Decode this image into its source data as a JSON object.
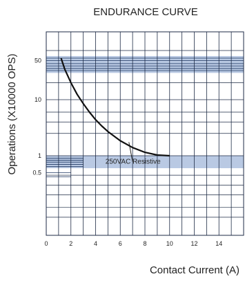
{
  "chart_data": {
    "type": "line",
    "title": "ENDURANCE CURVE",
    "xlabel": "Contact Current (A)",
    "ylabel": "Operations (X10000 OPS)",
    "xlim": [
      0,
      16
    ],
    "x_ticks": [
      0,
      2,
      4,
      6,
      8,
      10,
      12,
      14
    ],
    "y_scale": "log",
    "y_ticks": [
      {
        "value": 0.5,
        "label": "0.5"
      },
      {
        "value": 1,
        "label": "1"
      },
      {
        "value": 10,
        "label": "10"
      },
      {
        "value": 50,
        "label": "50"
      }
    ],
    "grid": true,
    "annotation": "250VAC Resistive",
    "series": [
      {
        "x": [
          1.2,
          1.5,
          2,
          2.5,
          3,
          3.5,
          4,
          4.5,
          5,
          6,
          7,
          8,
          9,
          10
        ],
        "values": [
          55,
          35,
          20,
          12.5,
          8.5,
          6,
          4.4,
          3.4,
          2.7,
          1.85,
          1.4,
          1.15,
          1.03,
          1.0
        ]
      }
    ],
    "colors": {
      "band": "#b9c9e3",
      "band_line": "#1d3560",
      "grid": "#1d2a44",
      "curve": "#111111"
    }
  }
}
